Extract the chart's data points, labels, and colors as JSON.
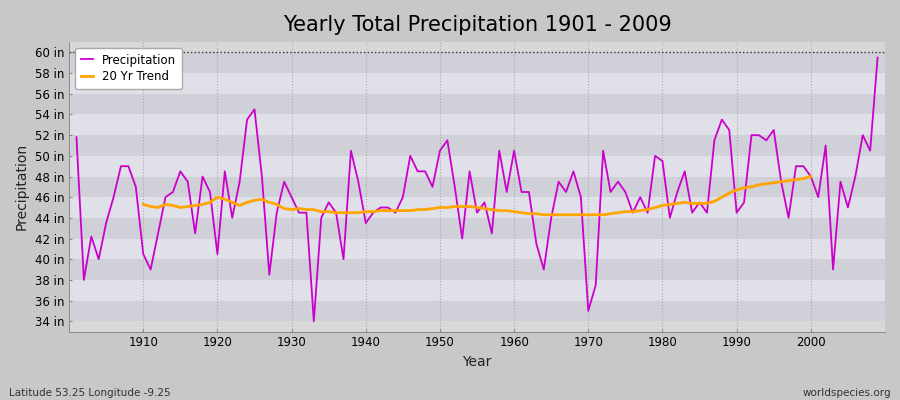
{
  "title": "Yearly Total Precipitation 1901 - 2009",
  "xlabel": "Year",
  "ylabel": "Precipitation",
  "lat_lon_label": "Latitude 53.25 Longitude -9.25",
  "source_label": "worldspecies.org",
  "years": [
    1901,
    1902,
    1903,
    1904,
    1905,
    1906,
    1907,
    1908,
    1909,
    1910,
    1911,
    1912,
    1913,
    1914,
    1915,
    1916,
    1917,
    1918,
    1919,
    1920,
    1921,
    1922,
    1923,
    1924,
    1925,
    1926,
    1927,
    1928,
    1929,
    1930,
    1931,
    1932,
    1933,
    1934,
    1935,
    1936,
    1937,
    1938,
    1939,
    1940,
    1941,
    1942,
    1943,
    1944,
    1945,
    1946,
    1947,
    1948,
    1949,
    1950,
    1951,
    1952,
    1953,
    1954,
    1955,
    1956,
    1957,
    1958,
    1959,
    1960,
    1961,
    1962,
    1963,
    1964,
    1965,
    1966,
    1967,
    1968,
    1969,
    1970,
    1971,
    1972,
    1973,
    1974,
    1975,
    1976,
    1977,
    1978,
    1979,
    1980,
    1981,
    1982,
    1983,
    1984,
    1985,
    1986,
    1987,
    1988,
    1989,
    1990,
    1991,
    1992,
    1993,
    1994,
    1995,
    1996,
    1997,
    1998,
    1999,
    2000,
    2001,
    2002,
    2003,
    2004,
    2005,
    2006,
    2007,
    2008,
    2009
  ],
  "precipitation": [
    51.8,
    38.0,
    42.2,
    40.0,
    43.5,
    46.0,
    49.0,
    49.0,
    47.0,
    40.5,
    39.0,
    42.5,
    46.0,
    46.5,
    48.5,
    47.5,
    42.5,
    48.0,
    46.5,
    40.5,
    48.5,
    44.0,
    47.5,
    53.5,
    54.5,
    48.0,
    38.5,
    44.5,
    47.5,
    46.0,
    44.5,
    44.5,
    34.0,
    44.0,
    45.5,
    44.5,
    40.0,
    50.5,
    47.5,
    43.5,
    44.5,
    45.0,
    45.0,
    44.5,
    46.0,
    50.0,
    48.5,
    48.5,
    47.0,
    50.5,
    51.5,
    47.0,
    42.0,
    48.5,
    44.5,
    45.5,
    42.5,
    50.5,
    46.5,
    50.5,
    46.5,
    46.5,
    41.5,
    39.0,
    44.0,
    47.5,
    46.5,
    48.5,
    46.0,
    35.0,
    37.5,
    50.5,
    46.5,
    47.5,
    46.5,
    44.5,
    46.0,
    44.5,
    50.0,
    49.5,
    44.0,
    46.5,
    48.5,
    44.5,
    45.5,
    44.5,
    51.5,
    53.5,
    52.5,
    44.5,
    45.5,
    52.0,
    52.0,
    51.5,
    52.5,
    47.5,
    44.0,
    49.0,
    49.0,
    48.0,
    46.0,
    51.0,
    39.0,
    47.5,
    45.0,
    48.0,
    52.0,
    50.5,
    59.5
  ],
  "trend": [
    null,
    null,
    null,
    null,
    null,
    null,
    null,
    null,
    null,
    45.3,
    45.1,
    45.0,
    45.3,
    45.2,
    45.0,
    45.1,
    45.2,
    45.3,
    45.5,
    46.0,
    45.8,
    45.5,
    45.2,
    45.5,
    45.7,
    45.8,
    45.5,
    45.3,
    44.9,
    44.8,
    44.9,
    44.8,
    44.8,
    44.6,
    44.6,
    44.5,
    44.5,
    44.5,
    44.5,
    44.6,
    44.6,
    44.7,
    44.7,
    44.7,
    44.7,
    44.7,
    44.8,
    44.8,
    44.9,
    45.0,
    45.0,
    45.1,
    45.1,
    45.1,
    45.0,
    44.9,
    44.8,
    44.7,
    44.7,
    44.6,
    44.5,
    44.4,
    44.4,
    44.3,
    44.3,
    44.3,
    44.3,
    44.3,
    44.3,
    44.3,
    44.3,
    44.3,
    44.4,
    44.5,
    44.6,
    44.6,
    44.7,
    44.8,
    45.0,
    45.2,
    45.3,
    45.4,
    45.5,
    45.4,
    45.4,
    45.4,
    45.6,
    46.0,
    46.4,
    46.7,
    46.9,
    47.0,
    47.2,
    47.3,
    47.4,
    47.5,
    47.6,
    47.7,
    47.8,
    48.0,
    null,
    null,
    null,
    null,
    null,
    null,
    null,
    null,
    null
  ],
  "precip_color": "#CC00CC",
  "trend_color": "#FFA500",
  "fig_bg_color": "#C8C8C8",
  "plot_bg_color": "#D8D8D8",
  "stripe_light": "#E0E0E8",
  "stripe_dark": "#D0D0D8",
  "ylim": [
    33,
    61
  ],
  "yticks": [
    34,
    36,
    38,
    40,
    42,
    44,
    46,
    48,
    50,
    52,
    54,
    56,
    58,
    60
  ],
  "xlim": [
    1900,
    2010
  ],
  "xticks": [
    1910,
    1920,
    1930,
    1940,
    1950,
    1960,
    1970,
    1980,
    1990,
    2000
  ],
  "dotted_line_y": 60,
  "title_fontsize": 15,
  "axis_label_fontsize": 10,
  "tick_fontsize": 8.5
}
